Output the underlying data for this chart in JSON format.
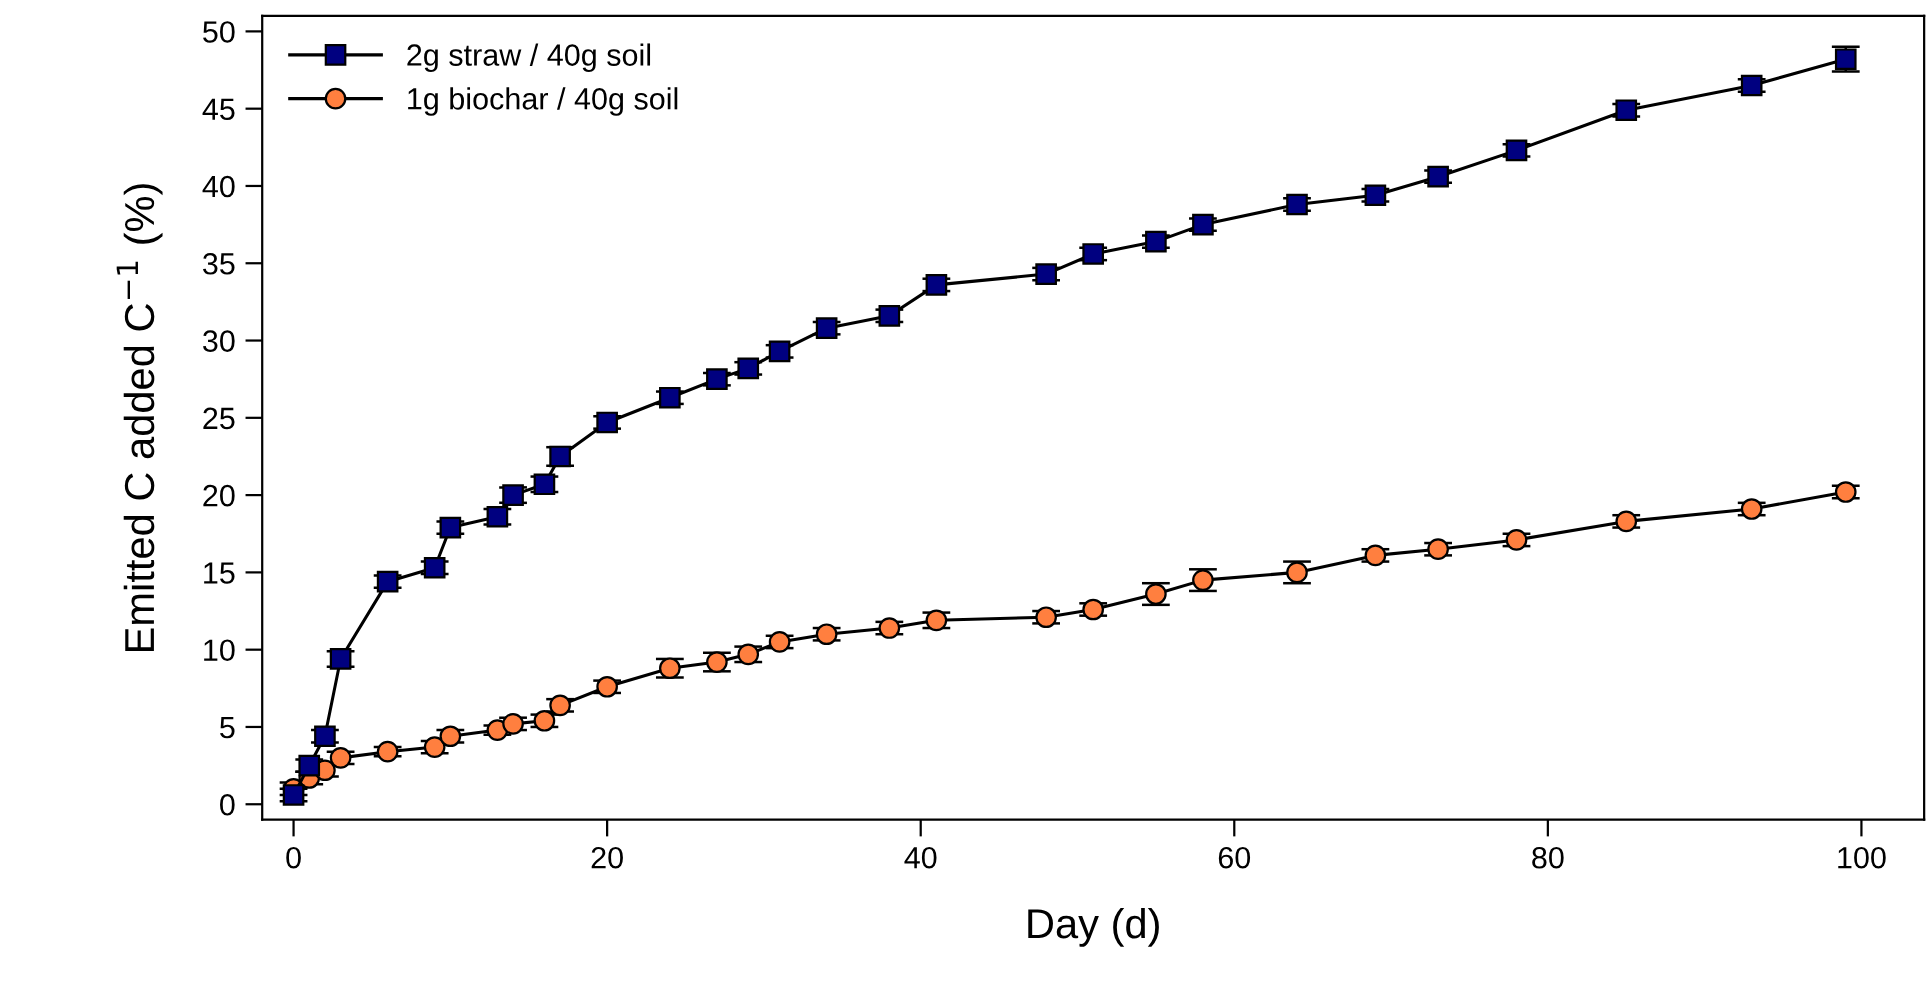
{
  "chart_data": {
    "type": "line",
    "xlabel": "Day (d)",
    "ylabel": "Emitted C added C$^{−1}$ (%)",
    "xlim": [
      -2,
      104
    ],
    "ylim": [
      -1,
      51
    ],
    "xticks": [
      0,
      20,
      40,
      60,
      80,
      100
    ],
    "yticks": [
      0,
      5,
      10,
      15,
      20,
      25,
      30,
      35,
      40,
      45,
      50
    ],
    "grid": false,
    "legend": "top left",
    "line_style": "solid",
    "x": [
      0,
      1,
      2,
      3,
      6,
      9,
      10,
      13,
      14,
      16,
      17,
      20,
      24,
      27,
      29,
      31,
      34,
      38,
      41,
      48,
      51,
      55,
      58,
      64,
      69,
      73,
      78,
      85,
      93,
      99
    ],
    "series": [
      {
        "name": "2g straw / 40g soil",
        "color": "#000080",
        "marker": "square",
        "values": [
          0.6,
          2.5,
          4.4,
          9.4,
          14.4,
          15.3,
          17.9,
          18.6,
          20.0,
          20.7,
          22.5,
          24.7,
          26.3,
          27.5,
          28.2,
          29.3,
          30.8,
          31.6,
          33.6,
          34.3,
          35.6,
          36.4,
          37.5,
          38.8,
          39.4,
          40.6,
          42.3,
          44.9,
          46.5,
          48.2
        ],
        "errors": [
          0.4,
          0.4,
          0.4,
          0.5,
          0.4,
          0.4,
          0.4,
          0.5,
          0.5,
          0.5,
          0.6,
          0.4,
          0.4,
          0.4,
          0.4,
          0.4,
          0.4,
          0.4,
          0.4,
          0.4,
          0.4,
          0.4,
          0.4,
          0.4,
          0.4,
          0.4,
          0.4,
          0.4,
          0.4,
          0.8
        ]
      },
      {
        "name": "1g biochar / 40g soil",
        "color": "#ff7f3f",
        "marker": "circle",
        "values": [
          1.0,
          1.7,
          2.2,
          3.0,
          3.4,
          3.7,
          4.4,
          4.8,
          5.2,
          5.4,
          6.4,
          7.6,
          8.8,
          9.2,
          9.7,
          10.5,
          11.0,
          11.4,
          11.9,
          12.1,
          12.6,
          13.6,
          14.5,
          15.0,
          16.1,
          16.5,
          17.1,
          18.3,
          19.1,
          20.2
        ],
        "errors": [
          0.4,
          0.4,
          0.4,
          0.4,
          0.3,
          0.4,
          0.4,
          0.3,
          0.4,
          0.4,
          0.4,
          0.4,
          0.6,
          0.6,
          0.5,
          0.4,
          0.4,
          0.4,
          0.5,
          0.4,
          0.4,
          0.7,
          0.7,
          0.7,
          0.4,
          0.4,
          0.4,
          0.4,
          0.4,
          0.4
        ]
      }
    ]
  }
}
